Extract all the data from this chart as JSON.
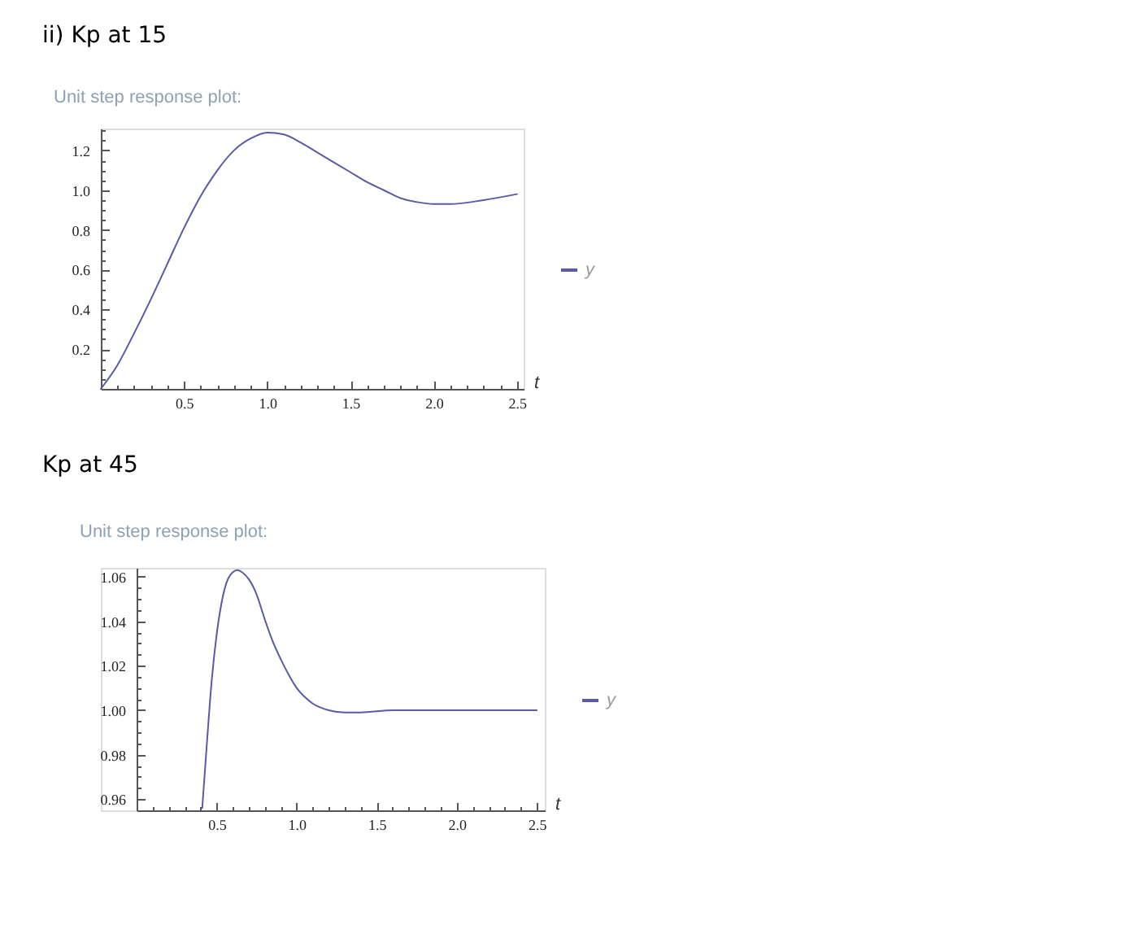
{
  "chart_data": [
    {
      "type": "line",
      "title": "ii) Kp at 15",
      "subtitle": "Unit step response plot:",
      "xlabel": "t",
      "x": [
        0,
        0.1,
        0.2,
        0.3,
        0.4,
        0.5,
        0.6,
        0.7,
        0.8,
        0.9,
        1.0,
        1.1,
        1.2,
        1.3,
        1.4,
        1.5,
        1.6,
        1.7,
        1.8,
        1.9,
        2.0,
        2.1,
        2.3,
        2.5
      ],
      "series": [
        {
          "name": "y",
          "color": "#5a5aa6",
          "values": [
            0,
            0.12,
            0.28,
            0.45,
            0.63,
            0.81,
            0.97,
            1.1,
            1.2,
            1.26,
            1.29,
            1.28,
            1.24,
            1.19,
            1.14,
            1.09,
            1.04,
            1.0,
            0.96,
            0.94,
            0.93,
            0.93,
            0.95,
            0.98
          ]
        }
      ],
      "xlim": [
        0,
        2.54
      ],
      "ylim": [
        0,
        1.31
      ],
      "xticks": [
        {
          "value": 0.1,
          "label": null
        },
        {
          "value": 0.2,
          "label": null
        },
        {
          "value": 0.3,
          "label": null
        },
        {
          "value": 0.4,
          "label": null
        },
        0.5,
        {
          "value": 0.6,
          "label": null
        },
        {
          "value": 0.7,
          "label": null
        },
        {
          "value": 0.8,
          "label": null
        },
        {
          "value": 0.9,
          "label": null
        },
        {
          "value": 1,
          "label": "1.0"
        },
        {
          "value": 1.1,
          "label": null
        },
        {
          "value": 1.2,
          "label": null
        },
        {
          "value": 1.3,
          "label": null
        },
        {
          "value": 1.4,
          "label": null
        },
        1.5,
        {
          "value": 1.6,
          "label": null
        },
        {
          "value": 1.7,
          "label": null
        },
        {
          "value": 1.8,
          "label": null
        },
        {
          "value": 1.9,
          "label": null
        },
        {
          "value": 2,
          "label": "2.0"
        },
        {
          "value": 2.1,
          "label": null
        },
        {
          "value": 2.2,
          "label": null
        },
        {
          "value": 2.3,
          "label": null
        },
        {
          "value": 2.4,
          "label": null
        },
        2.5
      ],
      "yticks": [
        {
          "value": 0.05,
          "label": null
        },
        {
          "value": 0.1,
          "label": null
        },
        {
          "value": 0.15,
          "label": null
        },
        0.2,
        {
          "value": 0.25,
          "label": null
        },
        {
          "value": 0.3,
          "label": null
        },
        {
          "value": 0.35,
          "label": null
        },
        0.4,
        {
          "value": 0.45,
          "label": null
        },
        {
          "value": 0.5,
          "label": null
        },
        {
          "value": 0.55,
          "label": null
        },
        0.6,
        {
          "value": 0.65,
          "label": null
        },
        {
          "value": 0.7,
          "label": null
        },
        {
          "value": 0.75,
          "label": null
        },
        0.8,
        {
          "value": 0.85,
          "label": null
        },
        {
          "value": 0.9,
          "label": null
        },
        {
          "value": 0.95,
          "label": null
        },
        {
          "value": 1,
          "label": "1.0"
        },
        {
          "value": 1.05,
          "label": null
        },
        {
          "value": 1.1,
          "label": null
        },
        {
          "value": 1.15,
          "label": null
        },
        1.2,
        {
          "value": 1.25,
          "label": null
        },
        {
          "value": 1.3,
          "label": null
        }
      ],
      "grid": false,
      "legend": "right"
    },
    {
      "type": "line",
      "title": "Kp at 45",
      "subtitle": "Unit step response plot:",
      "xlabel": "t",
      "x": [
        0.41,
        0.44,
        0.47,
        0.5,
        0.53,
        0.56,
        0.6,
        0.63,
        0.66,
        0.7,
        0.75,
        0.8,
        0.85,
        0.9,
        0.95,
        1.0,
        1.05,
        1.1,
        1.2,
        1.3,
        1.4,
        1.6,
        2.5
      ],
      "series": [
        {
          "name": "y",
          "color": "#5a5aa6",
          "values": [
            0.956,
            0.986,
            1.014,
            1.034,
            1.048,
            1.057,
            1.062,
            1.063,
            1.062,
            1.059,
            1.052,
            1.041,
            1.031,
            1.023,
            1.016,
            1.01,
            1.006,
            1.003,
            1.0,
            0.999,
            0.999,
            1.0,
            1.0
          ]
        }
      ],
      "xlim": [
        0,
        2.55
      ],
      "ylim": [
        0.955,
        1.064
      ],
      "xticks": [
        {
          "value": 0.1,
          "label": null
        },
        {
          "value": 0.2,
          "label": null
        },
        {
          "value": 0.3,
          "label": null
        },
        {
          "value": 0.4,
          "label": null
        },
        0.5,
        {
          "value": 0.6,
          "label": null
        },
        {
          "value": 0.7,
          "label": null
        },
        {
          "value": 0.8,
          "label": null
        },
        {
          "value": 0.9,
          "label": null
        },
        {
          "value": 1,
          "label": "1.0"
        },
        {
          "value": 1.1,
          "label": null
        },
        {
          "value": 1.2,
          "label": null
        },
        {
          "value": 1.3,
          "label": null
        },
        {
          "value": 1.4,
          "label": null
        },
        1.5,
        {
          "value": 1.6,
          "label": null
        },
        {
          "value": 1.7,
          "label": null
        },
        {
          "value": 1.8,
          "label": null
        },
        {
          "value": 1.9,
          "label": null
        },
        {
          "value": 2,
          "label": "2.0"
        },
        {
          "value": 2.1,
          "label": null
        },
        {
          "value": 2.2,
          "label": null
        },
        {
          "value": 2.3,
          "label": null
        },
        {
          "value": 2.4,
          "label": null
        },
        2.5
      ],
      "yticks": [
        0.96,
        {
          "value": 0.965,
          "label": null
        },
        {
          "value": 0.97,
          "label": null
        },
        {
          "value": 0.975,
          "label": null
        },
        0.98,
        {
          "value": 0.985,
          "label": null
        },
        {
          "value": 0.99,
          "label": null
        },
        {
          "value": 0.995,
          "label": null
        },
        {
          "value": 1,
          "label": "1.00"
        },
        {
          "value": 1.005,
          "label": null
        },
        {
          "value": 1.01,
          "label": null
        },
        {
          "value": 1.015,
          "label": null
        },
        1.02,
        {
          "value": 1.025,
          "label": null
        },
        {
          "value": 1.03,
          "label": null
        },
        {
          "value": 1.035,
          "label": null
        },
        1.04,
        {
          "value": 1.045,
          "label": null
        },
        {
          "value": 1.05,
          "label": null
        },
        {
          "value": 1.055,
          "label": null
        },
        1.06
      ],
      "grid": false,
      "legend": "right"
    }
  ]
}
